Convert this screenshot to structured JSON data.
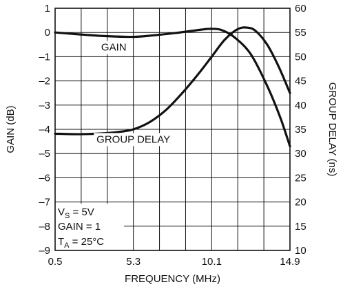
{
  "chart_data": {
    "type": "line",
    "xlabel": "FREQUENCY (MHz)",
    "ylabel_left": "GAIN (dB)",
    "ylabel_right": "GROUP DELAY (ns)",
    "xlim": [
      0.5,
      14.9
    ],
    "ylim_left": [
      -9,
      1
    ],
    "ylim_right": [
      10,
      60
    ],
    "x_ticks": [
      0.5,
      5.3,
      10.1,
      14.9
    ],
    "x_tick_labels": [
      "0.5",
      "5.3",
      "10.1",
      "14.9"
    ],
    "y_left_ticks": [
      1,
      0,
      -1,
      -2,
      -3,
      -4,
      -5,
      -6,
      -7,
      -8,
      -9
    ],
    "y_left_tick_labels": [
      "1",
      "0",
      "–1",
      "–2",
      "–3",
      "–4",
      "–5",
      "–6",
      "–7",
      "–8",
      "–9"
    ],
    "y_right_ticks": [
      60,
      55,
      50,
      45,
      40,
      35,
      30,
      25,
      20,
      15,
      10
    ],
    "y_right_tick_labels": [
      "60",
      "55",
      "50",
      "45",
      "40",
      "35",
      "30",
      "25",
      "20",
      "15",
      "10"
    ],
    "grid": true,
    "x_grid_step": 1.6,
    "series": [
      {
        "name": "GAIN",
        "axis": "left",
        "color": "#111111",
        "x": [
          0.5,
          2.0,
          3.6,
          5.3,
          6.5,
          7.9,
          9.5,
          10.1,
          10.7,
          11.5,
          12.5,
          13.5,
          14.3,
          14.9
        ],
        "y": [
          0.0,
          -0.08,
          -0.15,
          -0.18,
          -0.12,
          -0.02,
          0.12,
          0.15,
          0.1,
          -0.2,
          -0.9,
          -2.2,
          -3.5,
          -4.7
        ]
      },
      {
        "name": "GROUP DELAY",
        "axis": "right",
        "color": "#111111",
        "x": [
          0.5,
          2.0,
          3.6,
          4.5,
          5.3,
          6.3,
          7.3,
          8.3,
          9.3,
          10.1,
          10.9,
          11.7,
          12.3,
          12.8,
          13.5,
          14.2,
          14.9
        ],
        "y": [
          34.1,
          34.0,
          34.2,
          34.5,
          35.0,
          36.5,
          39.0,
          42.5,
          46.5,
          50.0,
          53.5,
          55.7,
          56.0,
          55.3,
          52.5,
          48.0,
          42.5
        ]
      }
    ],
    "series_labels": [
      {
        "text": "GAIN",
        "x": 4.1,
        "y_left": -0.75
      },
      {
        "text": "GROUP DELAY",
        "x": 5.3,
        "y_left": -4.55
      }
    ],
    "conditions": {
      "vs_prefix": "V",
      "vs_sub": "S",
      "vs_value": " = 5V",
      "gain": "GAIN = 1",
      "ta_prefix": "T",
      "ta_sub": "A",
      "ta_value": " = 25°C"
    }
  }
}
